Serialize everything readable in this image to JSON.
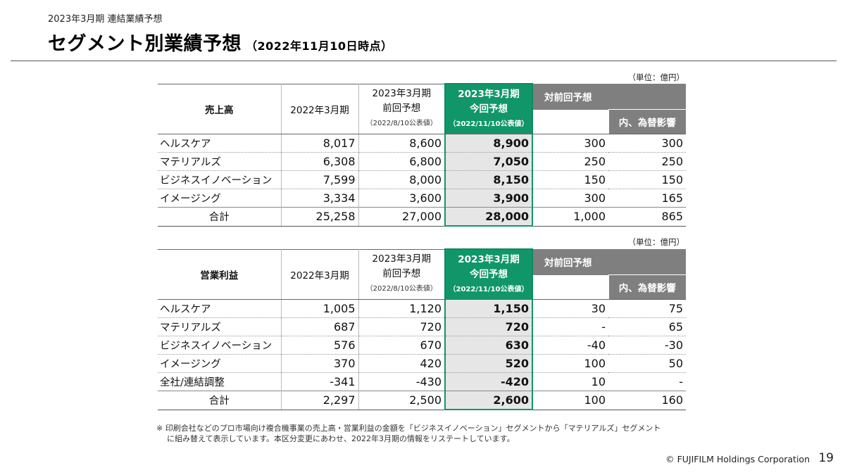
{
  "header": {
    "subtitle": "2023年3月期 連結業績予想",
    "title": "セグメント別業績予想",
    "date": "（2022年11月10日時点）"
  },
  "unit_label": "（単位：億円）",
  "column_headers": {
    "fy22": "2022年3月期",
    "prev_l1": "2023年3月期",
    "prev_l2": "前回予想",
    "prev_l3": "（2022/8/10公表値）",
    "cur_l1": "2023年3月期",
    "cur_l2": "今回予想",
    "cur_l3": "（2022/11/10公表値）",
    "diff": "対前回予想",
    "fx": "内、為替影響"
  },
  "sales": {
    "label": "売上高",
    "rows": [
      {
        "name": "ヘルスケア",
        "fy22": "8,017",
        "prev": "8,600",
        "cur": "8,900",
        "diff": "300",
        "fx": "300"
      },
      {
        "name": "マテリアルズ",
        "fy22": "6,308",
        "prev": "6,800",
        "cur": "7,050",
        "diff": "250",
        "fx": "250"
      },
      {
        "name": "ビジネスイノベーション",
        "fy22": "7,599",
        "prev": "8,000",
        "cur": "8,150",
        "diff": "150",
        "fx": "150"
      },
      {
        "name": "イメージング",
        "fy22": "3,334",
        "prev": "3,600",
        "cur": "3,900",
        "diff": "300",
        "fx": "165"
      }
    ],
    "total": {
      "name": "合計",
      "fy22": "25,258",
      "prev": "27,000",
      "cur": "28,000",
      "diff": "1,000",
      "fx": "865"
    }
  },
  "profit": {
    "label": "営業利益",
    "rows": [
      {
        "name": "ヘルスケア",
        "fy22": "1,005",
        "prev": "1,120",
        "cur": "1,150",
        "diff": "30",
        "fx": "75"
      },
      {
        "name": "マテリアルズ",
        "fy22": "687",
        "prev": "720",
        "cur": "720",
        "diff": "-",
        "fx": "65"
      },
      {
        "name": "ビジネスイノベーション",
        "fy22": "576",
        "prev": "670",
        "cur": "630",
        "diff": "-40",
        "fx": "-30"
      },
      {
        "name": "イメージング",
        "fy22": "370",
        "prev": "420",
        "cur": "520",
        "diff": "100",
        "fx": "50"
      },
      {
        "name": "全社/連結調整",
        "fy22": "-341",
        "prev": "-430",
        "cur": "-420",
        "diff": "10",
        "fx": "-"
      }
    ],
    "total": {
      "name": "合計",
      "fy22": "2,297",
      "prev": "2,500",
      "cur": "2,600",
      "diff": "100",
      "fx": "160"
    }
  },
  "note": {
    "line1": "※ 印刷会社などのプロ市場向け複合機事業の売上高・営業利益の金額を「ビジネスイノベーション」セグメントから「マテリアルズ」セグメント",
    "line2": "に組み替えて表示しています。本区分変更にあわせ、2022年3月期の情報をリステートしています。"
  },
  "footer": {
    "copyright": "© FUJIFILM Holdings Corporation",
    "page": "19"
  },
  "colors": {
    "accent_green": "#119669",
    "header_gray": "#7f7f7f",
    "highlight_bg": "#e6e6e6"
  }
}
